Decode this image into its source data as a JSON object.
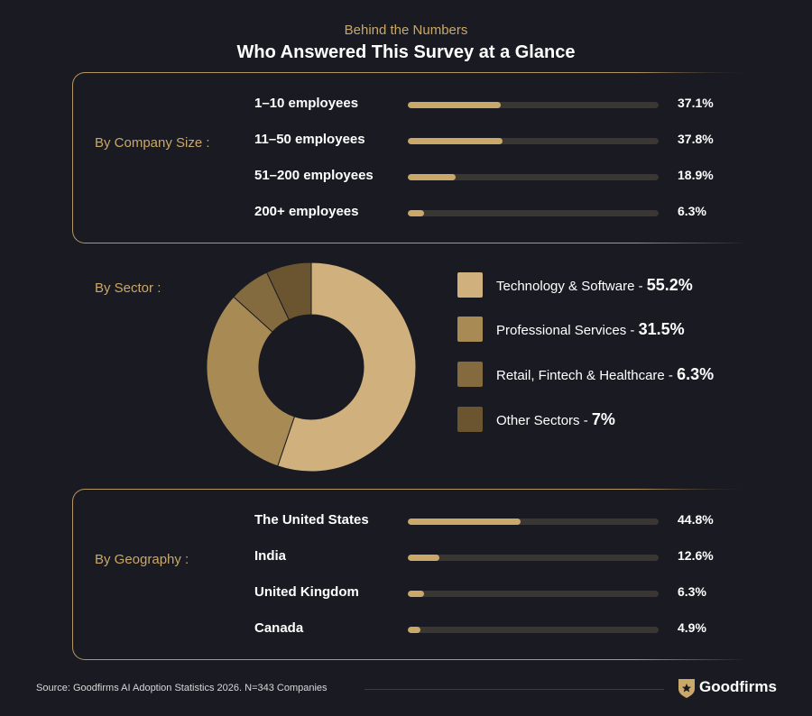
{
  "header": {
    "subtitle": "Behind the Numbers",
    "title": "Who Answered This Survey at a Glance"
  },
  "company_size": {
    "label": "By Company Size :",
    "rows": [
      {
        "label": "1–10 employees",
        "value": 37.1,
        "display": "37.1%"
      },
      {
        "label": "11–50 employees",
        "value": 37.8,
        "display": "37.8%"
      },
      {
        "label": "51–200 employees",
        "value": 18.9,
        "display": "18.9%"
      },
      {
        "label": "200+ employees",
        "value": 6.3,
        "display": "6.3%"
      }
    ]
  },
  "sector": {
    "label": "By Sector :",
    "items": [
      {
        "label": "Technology & Software - ",
        "value_text": "55.2%",
        "value": 55.2,
        "color": "#d0b07c"
      },
      {
        "label": "Professional Services - ",
        "value_text": "31.5%",
        "value": 31.5,
        "color": "#a88a55"
      },
      {
        "label": "Retail, Fintech & Healthcare - ",
        "value_text": "6.3%",
        "value": 6.3,
        "color": "#836a3f"
      },
      {
        "label": "Other Sectors - ",
        "value_text": "7%",
        "value": 7,
        "color": "#6b5530"
      }
    ]
  },
  "geography": {
    "label": "By Geography :",
    "rows": [
      {
        "label": "The United States",
        "value": 44.8,
        "display": "44.8%"
      },
      {
        "label": "India",
        "value": 12.6,
        "display": "12.6%"
      },
      {
        "label": "United Kingdom",
        "value": 6.3,
        "display": "6.3%"
      },
      {
        "label": "Canada",
        "value": 4.9,
        "display": "4.9%"
      }
    ]
  },
  "footer": {
    "source": "Source: Goodfirms AI Adoption Statistics 2026. N=343 Companies",
    "brand": "Goodfirms"
  },
  "colors": {
    "background": "#1a1b22",
    "accent": "#c9a86a",
    "track": "#3a3733"
  },
  "chart_data": [
    {
      "type": "bar",
      "title": "By Company Size :",
      "categories": [
        "1–10 employees",
        "11–50 employees",
        "51–200 employees",
        "200+ employees"
      ],
      "values": [
        37.1,
        37.8,
        18.9,
        6.3
      ],
      "unit": "%"
    },
    {
      "type": "pie",
      "title": "By Sector :",
      "categories": [
        "Technology & Software",
        "Professional Services",
        "Retail, Fintech & Healthcare",
        "Other Sectors"
      ],
      "values": [
        55.2,
        31.5,
        6.3,
        7
      ],
      "unit": "%"
    },
    {
      "type": "bar",
      "title": "By Geography :",
      "categories": [
        "The United States",
        "India",
        "United Kingdom",
        "Canada"
      ],
      "values": [
        44.8,
        12.6,
        6.3,
        4.9
      ],
      "unit": "%"
    }
  ]
}
